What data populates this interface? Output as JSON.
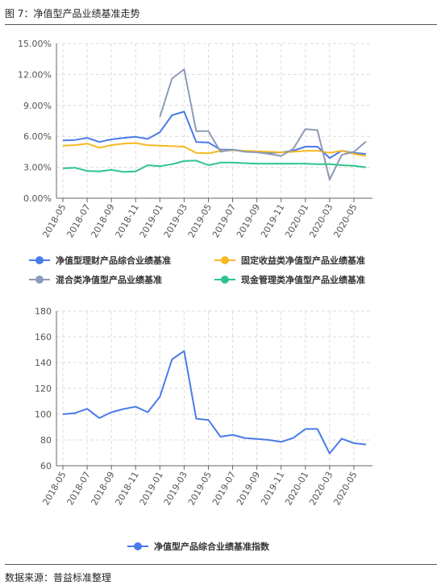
{
  "header": {
    "title": "图 7：净值型产品业绩基准走势"
  },
  "footer": {
    "source": "数据来源：普益标准整理"
  },
  "chart_data": [
    {
      "type": "line",
      "title": "",
      "xlabel": "",
      "ylabel": "",
      "x": [
        "2018-05",
        "2018-06",
        "2018-07",
        "2018-08",
        "2018-09",
        "2018-10",
        "2018-11",
        "2018-12",
        "2019-01",
        "2019-02",
        "2019-03",
        "2019-04",
        "2019-05",
        "2019-06",
        "2019-07",
        "2019-08",
        "2019-09",
        "2019-10",
        "2019-11",
        "2019-12",
        "2020-01",
        "2020-02",
        "2020-03",
        "2020-04",
        "2020-05",
        "2020-06"
      ],
      "x_tick_labels": [
        "2018-05",
        "2018-07",
        "2018-09",
        "2018-11",
        "2019-01",
        "2019-03",
        "2019-05",
        "2019-07",
        "2019-09",
        "2019-11",
        "2020-01",
        "2020-03",
        "2020-05"
      ],
      "y_ticks": [
        "0.00%",
        "3.00%",
        "6.00%",
        "9.00%",
        "12.00%",
        "15.00%"
      ],
      "ylim": [
        0,
        15
      ],
      "y_unit": "%",
      "grid": true,
      "legend_position": "bottom",
      "series": [
        {
          "name": "净值型理财产品综合业绩基准",
          "color": "#4a7be8",
          "values": [
            5.6,
            5.65,
            5.85,
            5.45,
            5.7,
            5.85,
            5.95,
            5.75,
            6.4,
            8.05,
            8.4,
            5.45,
            5.4,
            4.7,
            4.7,
            4.55,
            4.5,
            4.4,
            4.45,
            4.6,
            5.0,
            5.0,
            3.9,
            4.6,
            4.4,
            4.3
          ]
        },
        {
          "name": "固定收益类净值型产品业绩基准",
          "color": "#f5b921",
          "values": [
            5.1,
            5.15,
            5.3,
            4.9,
            5.15,
            5.3,
            5.35,
            5.15,
            5.1,
            5.05,
            5.0,
            4.4,
            4.35,
            4.6,
            4.65,
            4.6,
            4.55,
            4.5,
            4.45,
            4.5,
            4.6,
            4.6,
            4.4,
            4.6,
            4.3,
            4.1
          ]
        },
        {
          "name": "混合类净值型产品业绩基准",
          "color": "#8c9ab8",
          "values": [
            null,
            null,
            null,
            null,
            null,
            null,
            null,
            null,
            7.9,
            11.6,
            12.5,
            6.5,
            6.5,
            4.5,
            4.7,
            4.5,
            4.45,
            4.3,
            4.1,
            4.8,
            6.7,
            6.6,
            1.8,
            4.2,
            4.5,
            5.5
          ]
        },
        {
          "name": "现金管理类净值型产品业绩基准",
          "color": "#2fc48a",
          "values": [
            2.9,
            2.95,
            2.65,
            2.6,
            2.75,
            2.55,
            2.6,
            3.2,
            3.1,
            3.3,
            3.6,
            3.65,
            3.2,
            3.45,
            3.45,
            3.4,
            3.35,
            3.35,
            3.35,
            3.35,
            3.35,
            3.3,
            3.3,
            3.2,
            3.15,
            3.0
          ]
        }
      ]
    },
    {
      "type": "line",
      "title": "",
      "xlabel": "",
      "ylabel": "",
      "x": [
        "2018-05",
        "2018-06",
        "2018-07",
        "2018-08",
        "2018-09",
        "2018-10",
        "2018-11",
        "2018-12",
        "2019-01",
        "2019-02",
        "2019-03",
        "2019-04",
        "2019-05",
        "2019-06",
        "2019-07",
        "2019-08",
        "2019-09",
        "2019-10",
        "2019-11",
        "2019-12",
        "2020-01",
        "2020-02",
        "2020-03",
        "2020-04",
        "2020-05",
        "2020-06"
      ],
      "x_tick_labels": [
        "2018-05",
        "2018-07",
        "2018-09",
        "2018-11",
        "2019-01",
        "2019-03",
        "2019-05",
        "2019-07",
        "2019-09",
        "2019-11",
        "2020-01",
        "2020-03",
        "2020-05"
      ],
      "y_ticks": [
        "60",
        "80",
        "100",
        "120",
        "140",
        "160",
        "180"
      ],
      "ylim": [
        60,
        180
      ],
      "y_unit": "",
      "grid": true,
      "legend_position": "bottom",
      "series": [
        {
          "name": "净值型产品综合业绩基准指数",
          "color": "#4a7be8",
          "values": [
            100,
            100.8,
            104.2,
            97,
            101.5,
            104,
            105.8,
            101.5,
            113.5,
            142.5,
            149,
            96.5,
            95.5,
            82.5,
            84,
            81.5,
            80.8,
            80,
            78.5,
            81.5,
            88.5,
            88.5,
            69.5,
            81,
            77.5,
            76.5
          ]
        }
      ]
    }
  ]
}
